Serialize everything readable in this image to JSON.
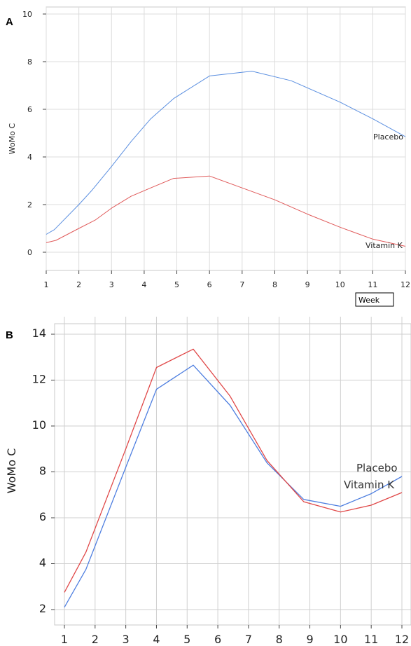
{
  "chart_data": [
    {
      "panel": "A",
      "type": "line",
      "xlabel": "Week",
      "ylabel": "WoMo C",
      "xlim": [
        1,
        12
      ],
      "ylim": [
        0,
        10
      ],
      "xticks": [
        1,
        2,
        3,
        4,
        5,
        6,
        7,
        8,
        9,
        10,
        11,
        12
      ],
      "yticks": [
        0,
        2,
        4,
        6,
        8,
        10
      ],
      "grid": true,
      "series": [
        {
          "name": "Placebo",
          "color": "#5b8fe0",
          "x": [
            1,
            1.25,
            2,
            2.4,
            3,
            3.6,
            4.2,
            4.9,
            6,
            7.3,
            8.5,
            10,
            11,
            12
          ],
          "y": [
            0.75,
            0.95,
            2.0,
            2.6,
            3.6,
            4.65,
            5.6,
            6.45,
            7.4,
            7.6,
            7.2,
            6.3,
            5.6,
            4.85
          ]
        },
        {
          "name": "Vitamin K",
          "color": "#e05a5a",
          "x": [
            1,
            1.3,
            2,
            2.5,
            3,
            3.6,
            4.2,
            4.9,
            6,
            7,
            8,
            9,
            10,
            11,
            12
          ],
          "y": [
            0.4,
            0.5,
            1.0,
            1.35,
            1.85,
            2.35,
            2.7,
            3.1,
            3.2,
            2.7,
            2.2,
            1.6,
            1.05,
            0.55,
            0.25
          ]
        }
      ]
    },
    {
      "panel": "B",
      "type": "line",
      "xlabel": "",
      "ylabel": "WoMo C",
      "xlim": [
        1,
        12
      ],
      "ylim": [
        2,
        14
      ],
      "xticks": [
        1,
        2,
        3,
        4,
        5,
        6,
        7,
        8,
        9,
        10,
        11,
        12
      ],
      "yticks": [
        2,
        4,
        6,
        8,
        10,
        12,
        14
      ],
      "grid": true,
      "series": [
        {
          "name": "Placebo",
          "color": "#4f7fe0",
          "x": [
            1,
            1.7,
            3,
            4,
            5.2,
            6.4,
            7.6,
            8.8,
            10,
            11,
            12
          ],
          "y": [
            2.1,
            3.75,
            8.2,
            11.6,
            12.65,
            10.9,
            8.4,
            6.8,
            6.5,
            7.05,
            7.8
          ]
        },
        {
          "name": "Vitamin K",
          "color": "#e04848",
          "x": [
            1,
            1.7,
            3,
            4,
            5.2,
            6.4,
            7.6,
            8.8,
            10,
            11,
            12
          ],
          "y": [
            2.75,
            4.5,
            9.0,
            12.55,
            13.35,
            11.3,
            8.5,
            6.7,
            6.25,
            6.55,
            7.1
          ]
        }
      ]
    }
  ]
}
